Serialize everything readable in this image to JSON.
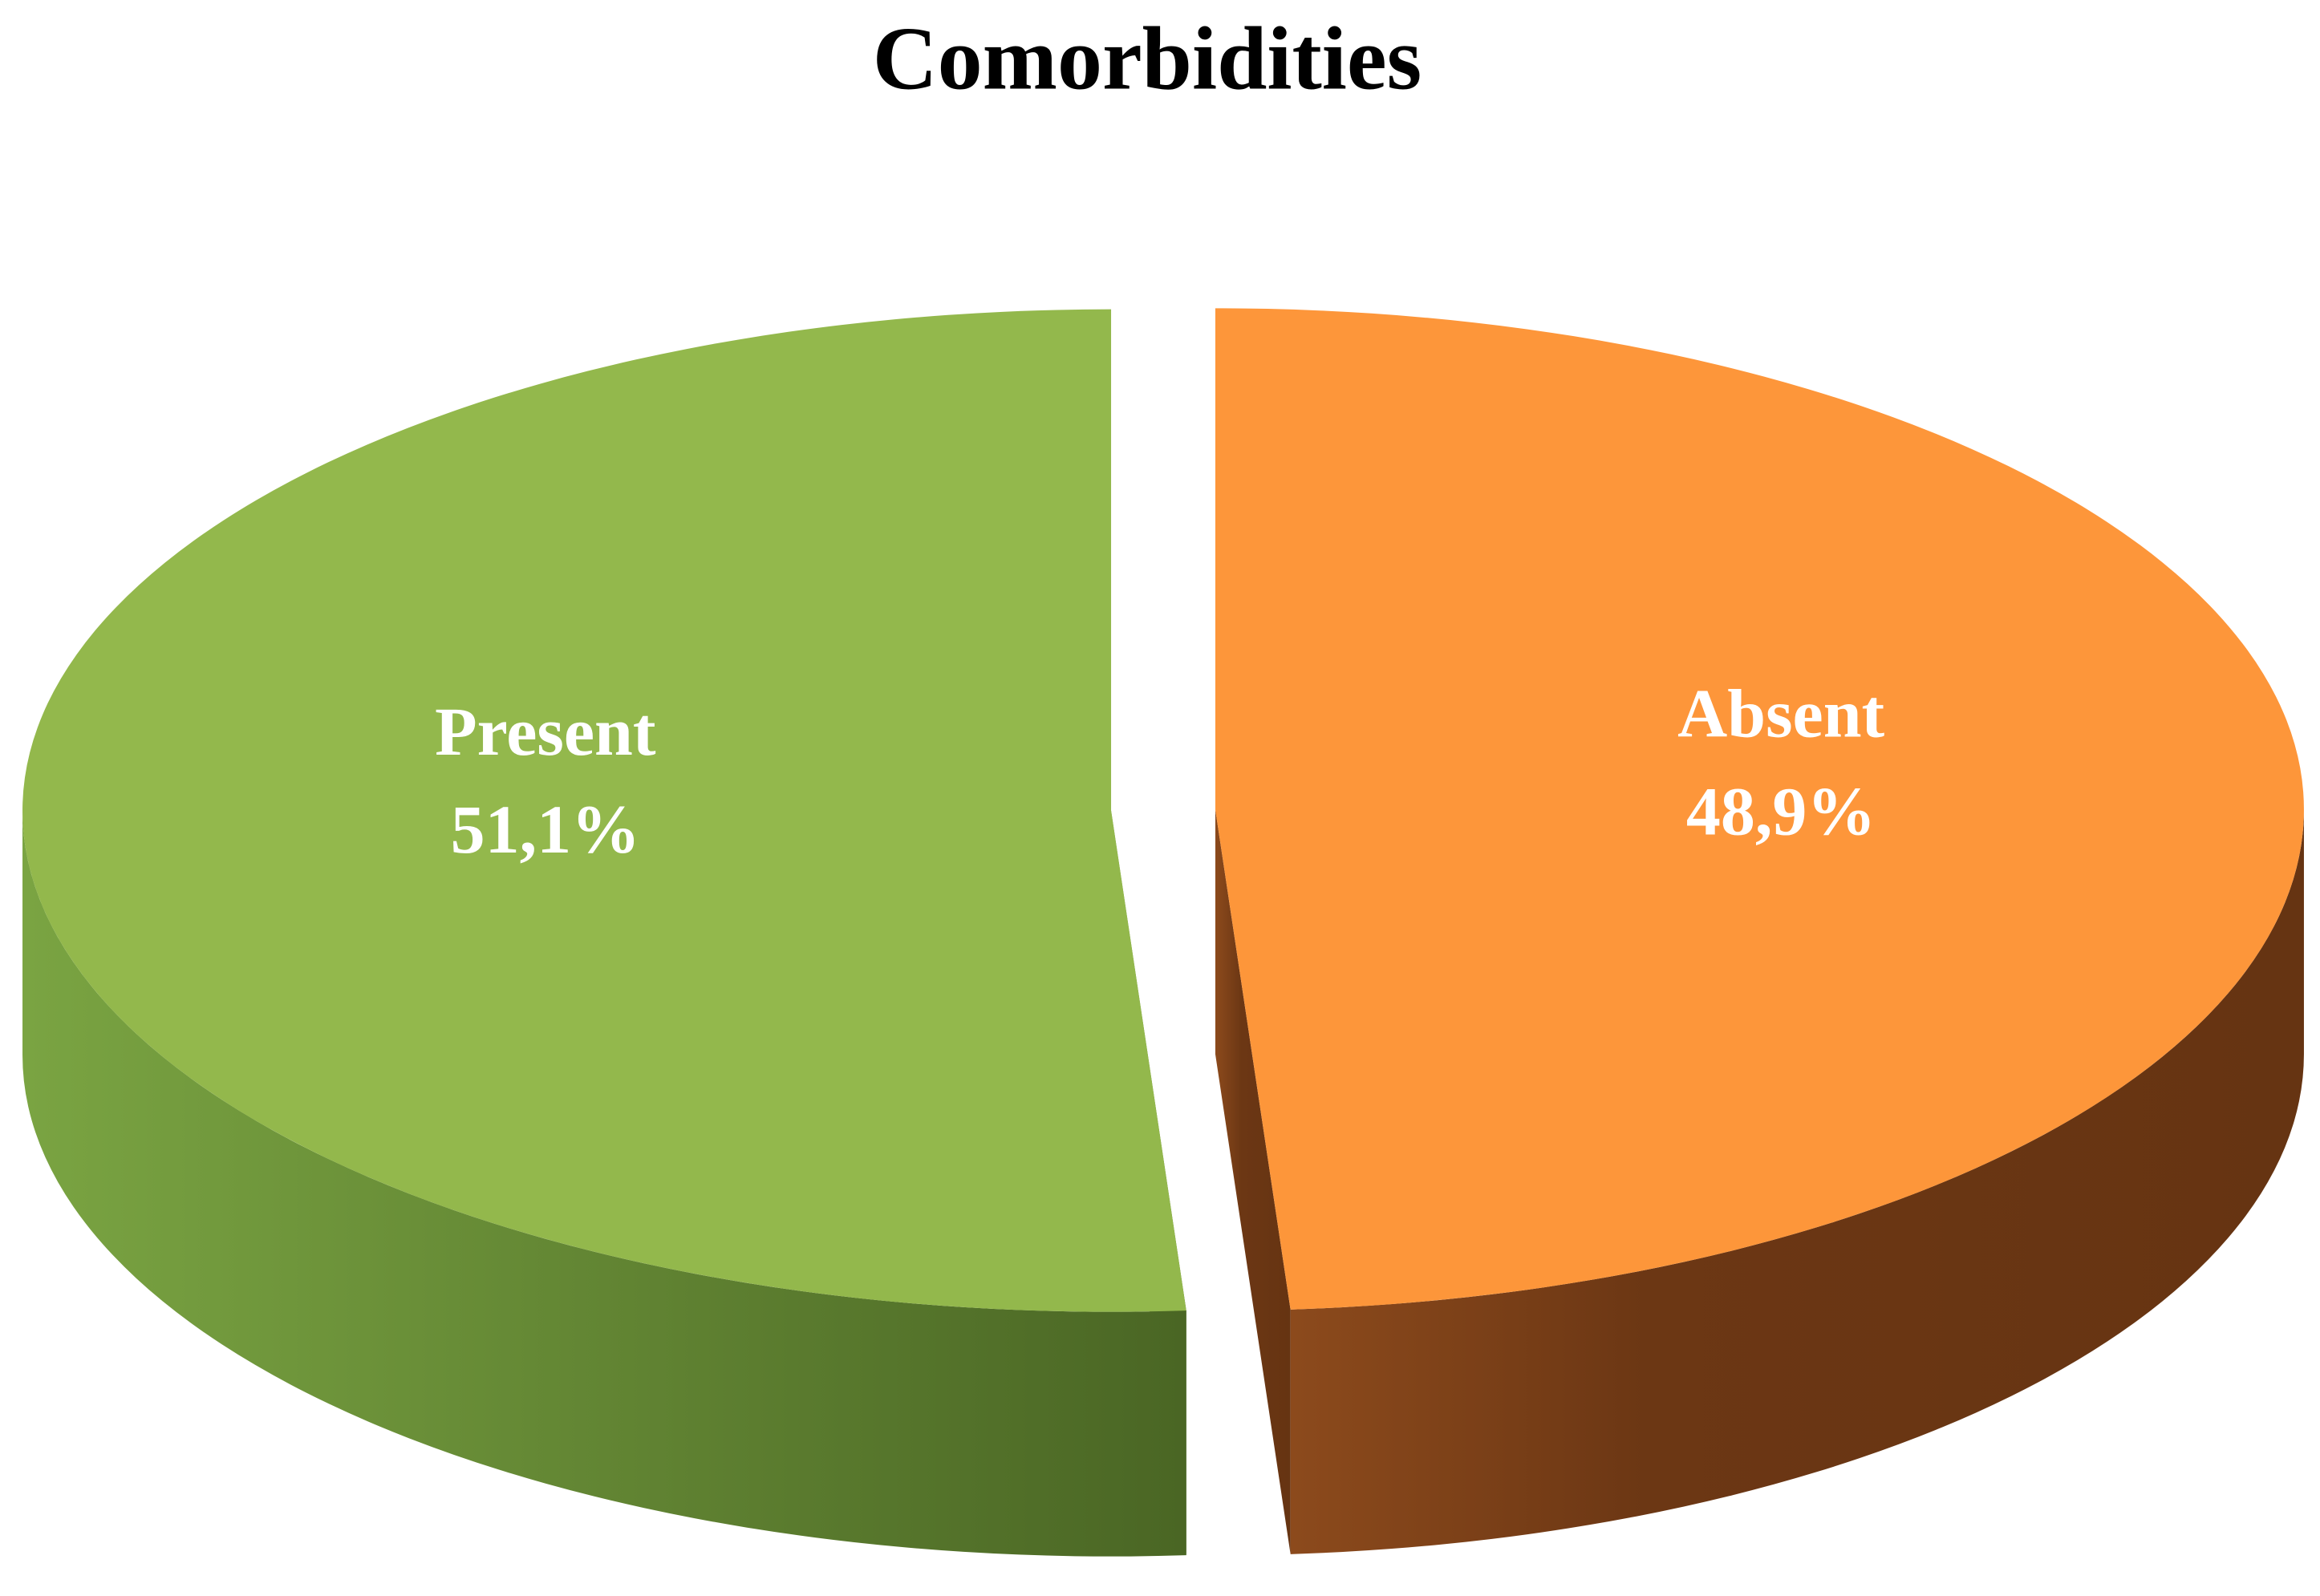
{
  "chart_data": {
    "type": "pie",
    "title": "Comorbidities",
    "categories": [
      "Present",
      "Absent"
    ],
    "values": [
      51.1,
      48.9
    ],
    "value_labels": [
      "51,1%",
      "48,9%"
    ],
    "colors": [
      "#93b84c",
      "#fd963a"
    ]
  }
}
